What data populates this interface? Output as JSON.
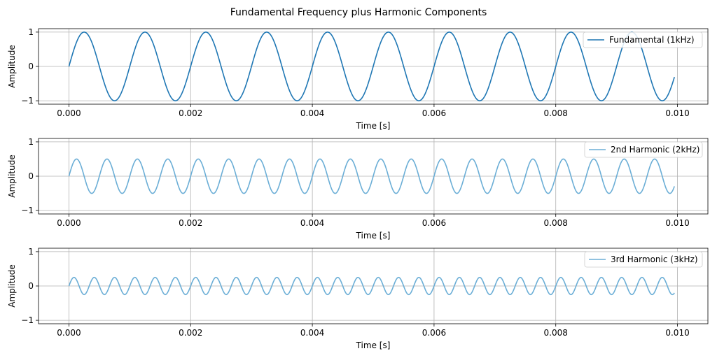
{
  "chart_data": {
    "type": "line",
    "title": "Fundamental Frequency plus Harmonic Components",
    "subplots": [
      {
        "series": [
          {
            "name": "Fundamental (1kHz)",
            "amplitude": 1.0,
            "frequency_hz": 1000,
            "color": "#1f77b4"
          }
        ],
        "xlabel": "Time [s]",
        "ylabel": "Amplitude",
        "xlim": [
          -0.0005,
          0.0105
        ],
        "ylim": [
          -1.1,
          1.1
        ],
        "x_range": [
          0,
          0.00995
        ],
        "sample_step": 5e-05,
        "xticks": [
          0,
          0.002,
          0.004,
          0.006,
          0.008,
          0.01
        ],
        "xtick_labels": [
          "0.000",
          "0.002",
          "0.004",
          "0.006",
          "0.008",
          "0.010"
        ],
        "yticks": [
          1,
          0,
          -1
        ],
        "ytick_labels": [
          "1",
          "0",
          "−1"
        ],
        "grid": true,
        "legend": "upper right"
      },
      {
        "series": [
          {
            "name": "2nd Harmonic (2kHz)",
            "amplitude": 0.5,
            "frequency_hz": 2000,
            "color": "#6baed6"
          }
        ],
        "xlabel": "Time [s]",
        "ylabel": "Amplitude",
        "xlim": [
          -0.0005,
          0.0105
        ],
        "ylim": [
          -1.1,
          1.1
        ],
        "x_range": [
          0,
          0.00995
        ],
        "sample_step": 5e-05,
        "xticks": [
          0,
          0.002,
          0.004,
          0.006,
          0.008,
          0.01
        ],
        "xtick_labels": [
          "0.000",
          "0.002",
          "0.004",
          "0.006",
          "0.008",
          "0.010"
        ],
        "yticks": [
          1,
          0,
          -1
        ],
        "ytick_labels": [
          "1",
          "0",
          "−1"
        ],
        "grid": true,
        "legend": "upper right"
      },
      {
        "series": [
          {
            "name": "3rd Harmonic (3kHz)",
            "amplitude": 0.25,
            "frequency_hz": 3000,
            "color": "#6baed6"
          }
        ],
        "xlabel": "Time [s]",
        "ylabel": "Amplitude",
        "xlim": [
          -0.0005,
          0.0105
        ],
        "ylim": [
          -1.1,
          1.1
        ],
        "x_range": [
          0,
          0.00995
        ],
        "sample_step": 5e-05,
        "xticks": [
          0,
          0.002,
          0.004,
          0.006,
          0.008,
          0.01
        ],
        "xtick_labels": [
          "0.000",
          "0.002",
          "0.004",
          "0.006",
          "0.008",
          "0.010"
        ],
        "yticks": [
          1,
          0,
          -1
        ],
        "ytick_labels": [
          "1",
          "0",
          "−1"
        ],
        "grid": true,
        "legend": "upper right"
      }
    ]
  }
}
